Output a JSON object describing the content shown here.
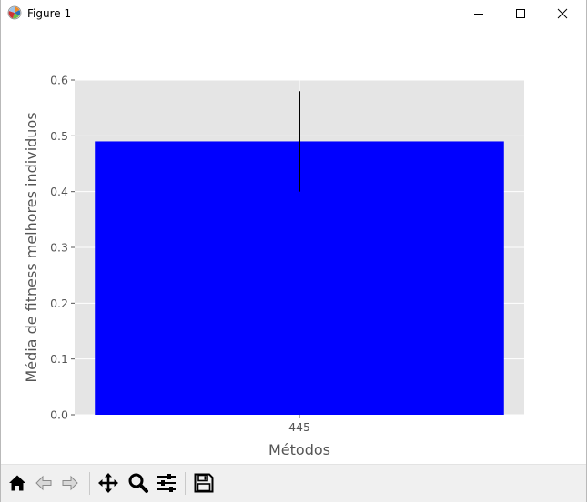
{
  "window": {
    "title": "Figure 1",
    "icons": [
      "matplotlib-logo-icon",
      "minimize-icon",
      "maximize-icon",
      "close-icon"
    ]
  },
  "toolbar": {
    "buttons": [
      {
        "name": "home-button",
        "icon": "home-icon"
      },
      {
        "name": "back-button",
        "icon": "arrow-left-icon"
      },
      {
        "name": "forward-button",
        "icon": "arrow-right-icon"
      },
      {
        "name": "pan-button",
        "icon": "move-arrows-icon"
      },
      {
        "name": "zoom-button",
        "icon": "magnifier-icon"
      },
      {
        "name": "configure-subplots-button",
        "icon": "sliders-icon"
      },
      {
        "name": "save-button",
        "icon": "floppy-disk-icon"
      }
    ]
  },
  "chart_data": {
    "type": "bar",
    "categories": [
      "445"
    ],
    "values": [
      0.49
    ],
    "error": [
      0.09
    ],
    "title": "",
    "xlabel": "Métodos",
    "ylabel": "Média de fitness melhores individuos",
    "ylim": [
      0,
      0.6
    ],
    "yticks": [
      "0.0",
      "0.1",
      "0.2",
      "0.3",
      "0.4",
      "0.5",
      "0.6"
    ],
    "grid": true,
    "colors": {
      "bar": "#0000ff",
      "errorbar": "#000000",
      "axes_background": "#e5e5e5",
      "grid": "#ffffff",
      "text": "#555555"
    }
  }
}
